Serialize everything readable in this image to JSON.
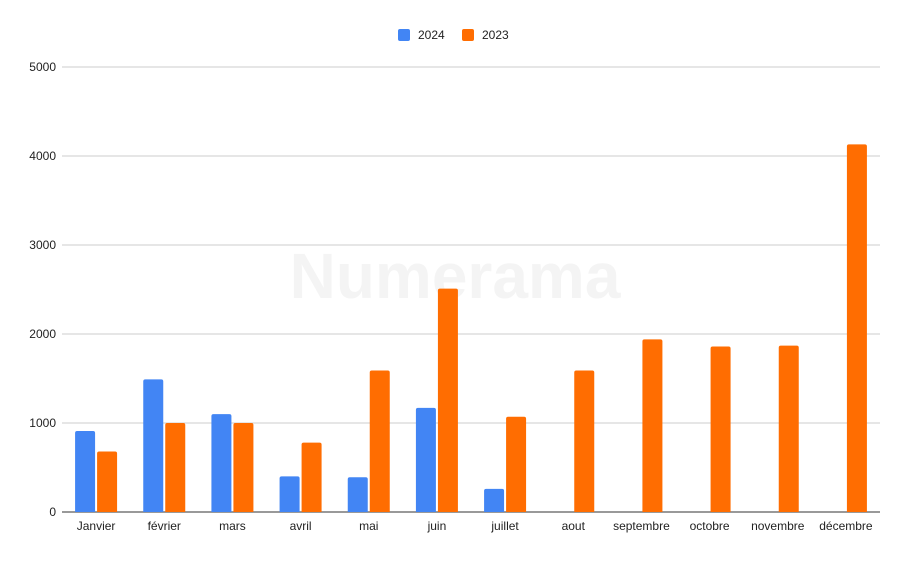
{
  "watermark": "Numerama",
  "colors": {
    "2024": "#4285f4",
    "2023": "#ff6d01"
  },
  "chart_data": {
    "type": "bar",
    "title": "",
    "xlabel": "",
    "ylabel": "",
    "ylim": [
      0,
      5000
    ],
    "yticks": [
      0,
      1000,
      2000,
      3000,
      4000,
      5000
    ],
    "grid": true,
    "legend_position": "top-center",
    "categories": [
      "Janvier",
      "février",
      "mars",
      "avril",
      "mai",
      "juin",
      "juillet",
      "aout",
      "septembre",
      "octobre",
      "novembre",
      "décembre"
    ],
    "series": [
      {
        "name": "2024",
        "color": "#4285f4",
        "values": [
          910,
          1490,
          1100,
          400,
          390,
          1170,
          260,
          null,
          null,
          null,
          null,
          null
        ]
      },
      {
        "name": "2023",
        "color": "#ff6d01",
        "values": [
          680,
          1000,
          1000,
          780,
          1590,
          2510,
          1070,
          1590,
          1940,
          1860,
          1870,
          4130
        ]
      }
    ]
  }
}
